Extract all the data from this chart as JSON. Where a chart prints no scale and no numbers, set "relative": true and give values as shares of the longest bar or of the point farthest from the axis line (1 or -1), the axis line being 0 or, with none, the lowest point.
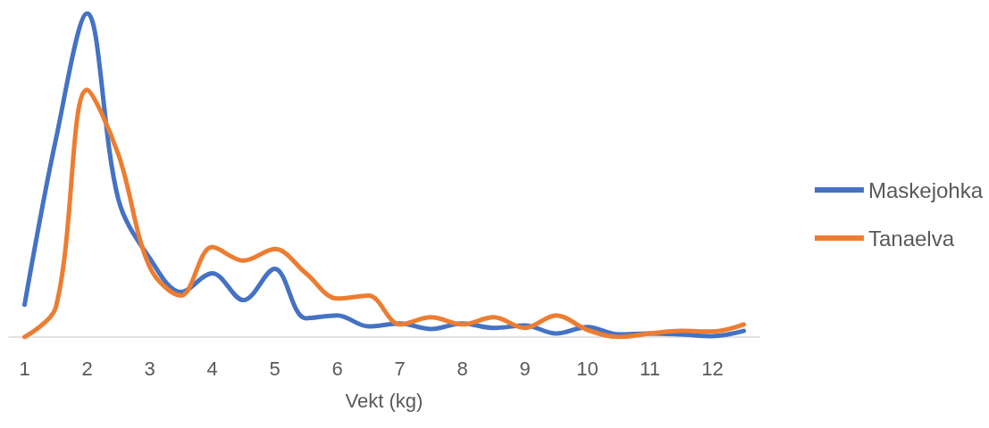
{
  "chart_data": {
    "type": "line",
    "relative": true,
    "xlabel": "Vekt (kg)",
    "x": [
      1,
      1.5,
      2,
      2.5,
      3,
      3.5,
      4,
      4.5,
      5,
      5.5,
      6,
      6.5,
      7,
      7.5,
      8,
      8.5,
      9,
      9.5,
      10,
      10.5,
      11,
      11.5,
      12,
      12.5
    ],
    "xlim": [
      0.75,
      12.75
    ],
    "xticks": [
      1,
      2,
      3,
      4,
      5,
      6,
      7,
      8,
      9,
      10,
      11,
      12
    ],
    "series": [
      {
        "name": "Maskejohka",
        "color": "#4472c4",
        "values": [
          0.1,
          0.61,
          1,
          0.425,
          0.244,
          0.139,
          0.197,
          0.114,
          0.211,
          0.058,
          0.067,
          0.033,
          0.042,
          0.025,
          0.042,
          0.028,
          0.036,
          0.011,
          0.031,
          0.008,
          0.011,
          0.008,
          0.003,
          0.019
        ]
      },
      {
        "name": "Tanaelva",
        "color": "#ed7d31",
        "values": [
          0,
          0.092,
          0.764,
          0.564,
          0.217,
          0.128,
          0.278,
          0.236,
          0.272,
          0.197,
          0.119,
          0.128,
          0.039,
          0.061,
          0.039,
          0.061,
          0.028,
          0.067,
          0.022,
          0,
          0.011,
          0.019,
          0.017,
          0.039
        ]
      }
    ],
    "legend": "right",
    "grid": false,
    "marker": "none",
    "line_style": "solid"
  }
}
